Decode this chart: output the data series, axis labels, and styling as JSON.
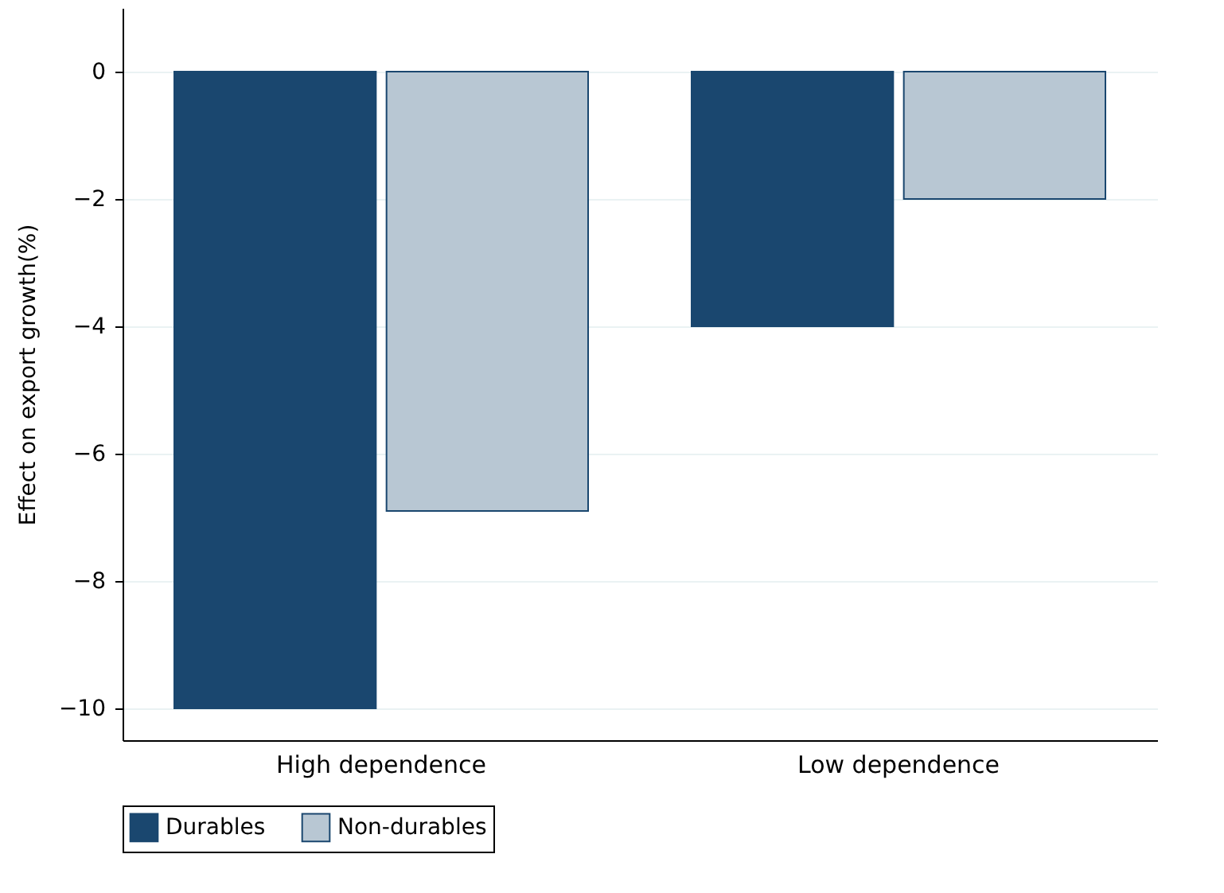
{
  "chart_data": {
    "type": "bar",
    "categories": [
      "High dependence",
      "Low dependence"
    ],
    "ylabel": "Effect on export growth(%)",
    "series": [
      {
        "name": "Durables",
        "color": "#1a476f",
        "values": [
          -10,
          -4
        ]
      },
      {
        "name": "Non-durables",
        "color": "#b8c7d3",
        "values": [
          -6.9,
          -2
        ]
      }
    ],
    "ylim": [
      -10.5,
      1
    ],
    "yticks": [
      0,
      -2,
      -4,
      -6,
      -8,
      -10
    ],
    "grid": "y",
    "legend": "bottom"
  }
}
